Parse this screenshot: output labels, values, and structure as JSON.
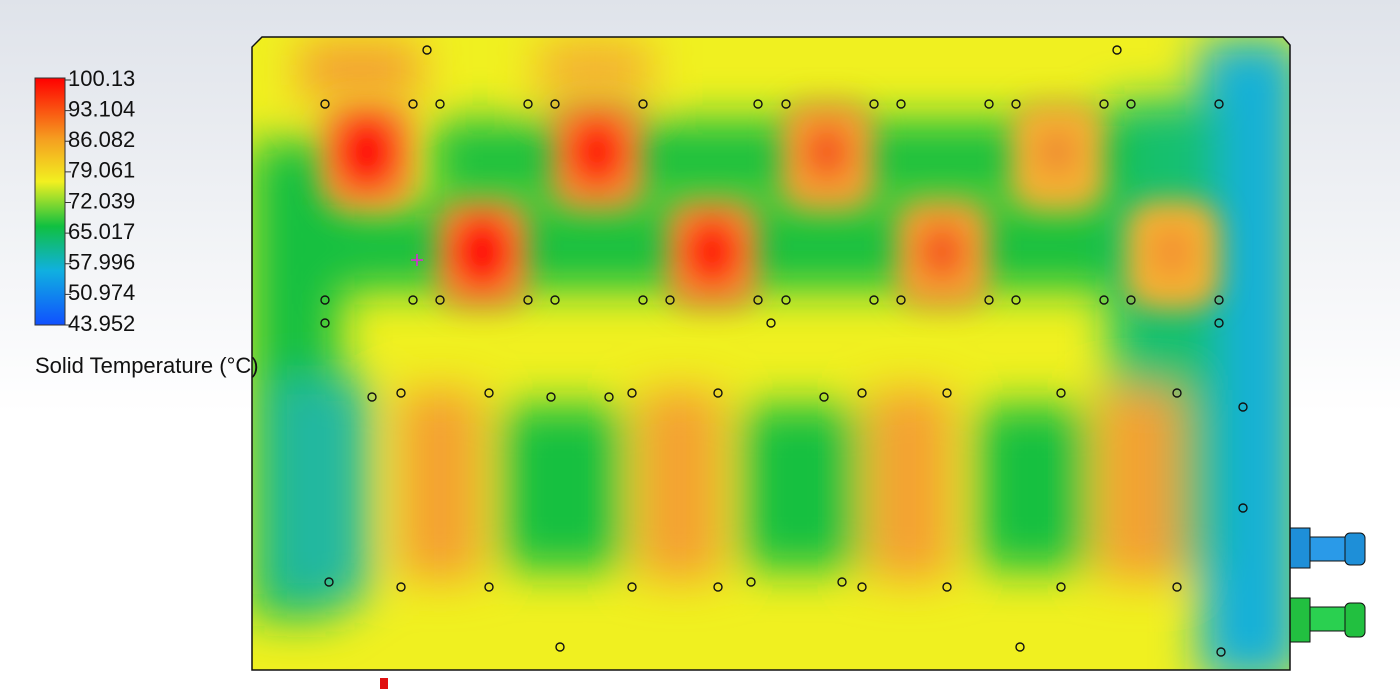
{
  "legend": {
    "labels": [
      "100.13",
      "93.104",
      "86.082",
      "79.061",
      "72.039",
      "65.017",
      "57.996",
      "50.974",
      "43.952"
    ],
    "title": "Solid Temperature (°C)"
  }
}
